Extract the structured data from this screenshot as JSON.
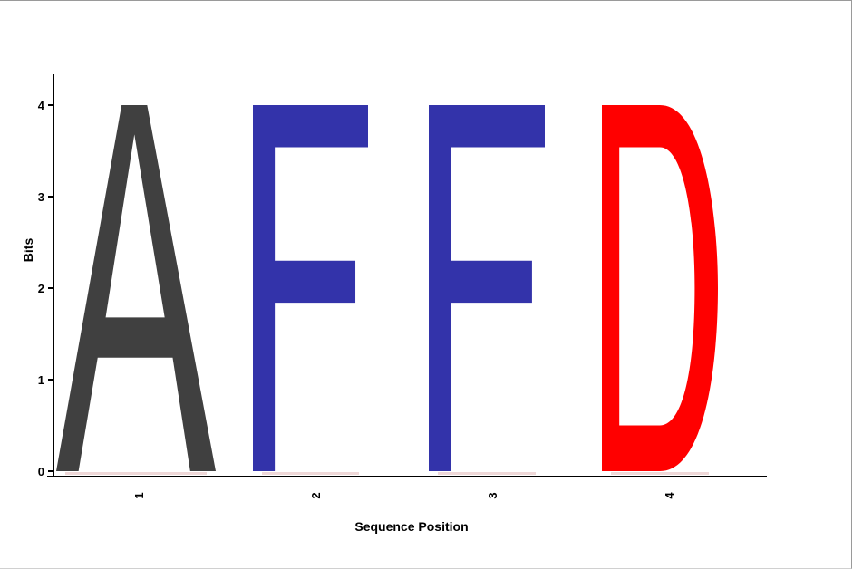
{
  "chart_data": {
    "type": "sequence-logo",
    "xlabel": "Sequence Position",
    "ylabel": "Bits",
    "ylim": [
      0,
      4
    ],
    "yticks": [
      "0",
      "1",
      "2",
      "3",
      "4"
    ],
    "positions": [
      {
        "label": "1",
        "letter": "A",
        "bits": 4.0,
        "color": "#404040"
      },
      {
        "label": "2",
        "letter": "F",
        "bits": 4.0,
        "color": "#3333aa"
      },
      {
        "label": "3",
        "letter": "F",
        "bits": 4.0,
        "color": "#3333aa"
      },
      {
        "label": "4",
        "letter": "D",
        "bits": 4.0,
        "color": "#ff0000"
      }
    ]
  }
}
